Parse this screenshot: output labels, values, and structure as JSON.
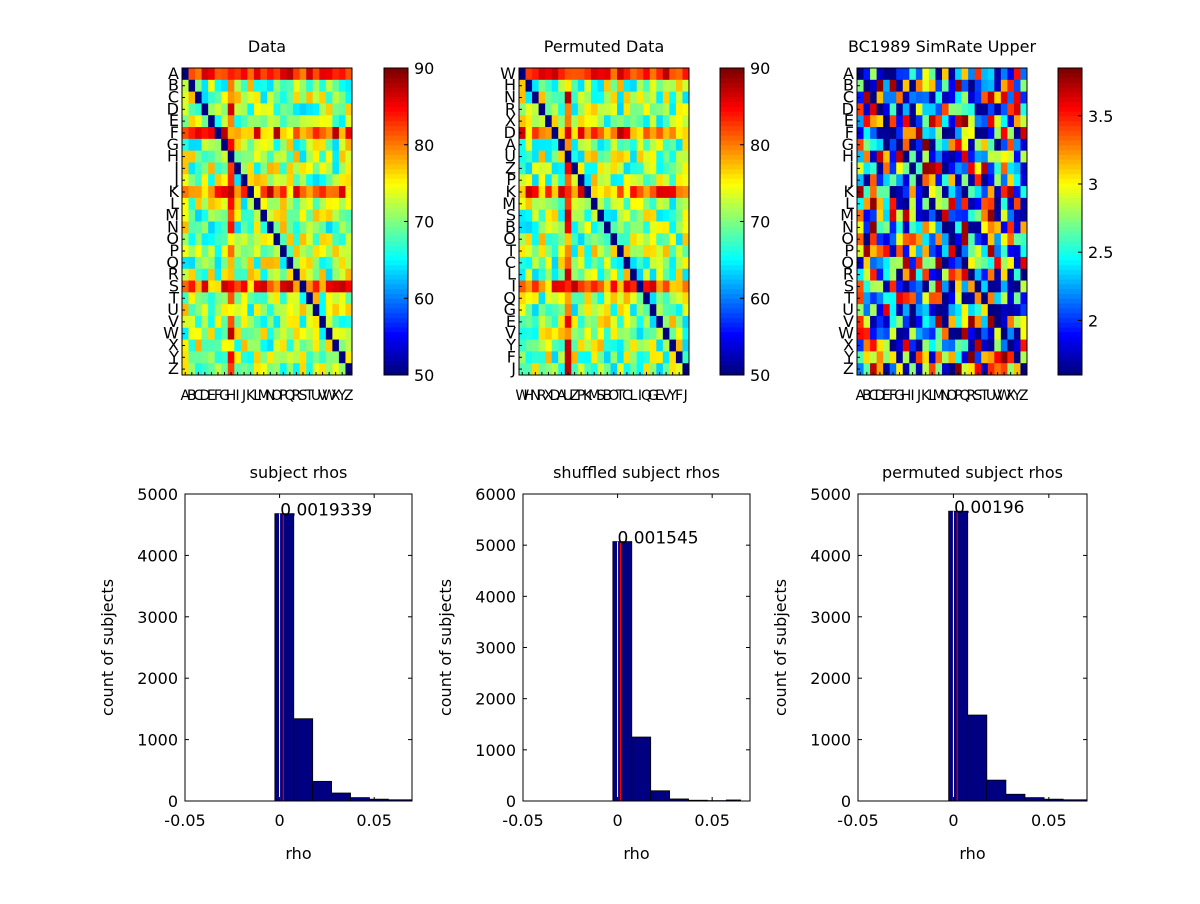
{
  "figure": {
    "background": "#ffffff"
  },
  "chart_data": [
    {
      "type": "heatmap",
      "title": "Data",
      "xlabels": [
        "A",
        "B",
        "C",
        "D",
        "E",
        "F",
        "G",
        "H",
        "I",
        "J",
        "K",
        "L",
        "M",
        "N",
        "O",
        "P",
        "Q",
        "R",
        "S",
        "T",
        "U",
        "V",
        "W",
        "X",
        "Y",
        "Z"
      ],
      "ylabels": [
        "A",
        "B",
        "C",
        "D",
        "E",
        "F",
        "G",
        "H",
        "I",
        "J",
        "K",
        "L",
        "M",
        "N",
        "O",
        "P",
        "Q",
        "R",
        "S",
        "T",
        "U",
        "V",
        "W",
        "X",
        "Y",
        "Z"
      ],
      "colorbar": {
        "min": 50,
        "max": 90,
        "ticks": [
          50,
          60,
          70,
          80,
          90
        ],
        "colormap": "jet"
      },
      "diagonal_value": 50,
      "value_range": [
        55,
        88
      ],
      "pattern": "high-row-col-offset",
      "seed": 11
    },
    {
      "type": "heatmap",
      "title": "Permuted Data",
      "xlabels": [
        "W",
        "H",
        "N",
        "R",
        "X",
        "D",
        "A",
        "U",
        "Z",
        "P",
        "K",
        "M",
        "S",
        "B",
        "O",
        "T",
        "C",
        "L",
        "I",
        "Q",
        "G",
        "E",
        "V",
        "Y",
        "F",
        "J"
      ],
      "ylabels": [
        "W",
        "H",
        "N",
        "R",
        "X",
        "D",
        "A",
        "U",
        "Z",
        "P",
        "K",
        "M",
        "S",
        "B",
        "O",
        "T",
        "C",
        "L",
        "I",
        "Q",
        "G",
        "E",
        "V",
        "Y",
        "F",
        "J"
      ],
      "colorbar": {
        "min": 50,
        "max": 90,
        "ticks": [
          50,
          60,
          70,
          80,
          90
        ],
        "colormap": "jet"
      },
      "diagonal_value": 50,
      "value_range": [
        55,
        88
      ],
      "pattern": "high-row-col-offset",
      "seed": 23
    },
    {
      "type": "heatmap",
      "title": "BC1989 SimRate Upper",
      "xlabels": [
        "A",
        "B",
        "C",
        "D",
        "E",
        "F",
        "G",
        "H",
        "I",
        "J",
        "K",
        "L",
        "M",
        "N",
        "O",
        "P",
        "Q",
        "R",
        "S",
        "T",
        "U",
        "V",
        "W",
        "X",
        "Y",
        "Z"
      ],
      "ylabels": [
        "A",
        "B",
        "C",
        "D",
        "E",
        "F",
        "G",
        "H",
        "I",
        "J",
        "K",
        "L",
        "M",
        "N",
        "O",
        "P",
        "Q",
        "R",
        "S",
        "T",
        "U",
        "V",
        "W",
        "X",
        "Y",
        "Z"
      ],
      "colorbar": {
        "min": 1.6,
        "max": 3.85,
        "ticks": [
          2,
          2.5,
          3,
          3.5
        ],
        "colormap": "jet"
      },
      "diagonal_value": 1.6,
      "value_range": [
        1.6,
        3.85
      ],
      "pattern": "random",
      "seed": 37
    },
    {
      "type": "bar",
      "title": "subject rhos",
      "xlabel": "rho",
      "ylabel": "count of subjects",
      "xlim": [
        -0.05,
        0.07
      ],
      "ylim": [
        0,
        5000
      ],
      "xticks": [
        -0.05,
        0,
        0.05
      ],
      "xtick_labels": [
        "-0.05",
        "0",
        "0.05"
      ],
      "yticks": [
        0,
        1000,
        2000,
        3000,
        4000,
        5000
      ],
      "bin_edges": [
        -0.0025,
        0.0075,
        0.0175,
        0.0275,
        0.0375,
        0.0475,
        0.0575,
        0.07
      ],
      "values": [
        4680,
        1340,
        320,
        130,
        55,
        30,
        20
      ],
      "bar_color": "#000080",
      "mean_line": {
        "x": 0.0019339,
        "color": "#ff0000"
      },
      "zero_line": {
        "x": 0,
        "color": "#ffffff"
      },
      "annotation": {
        "text": "0.0019339",
        "x": 0.0019339,
        "y": 4680
      }
    },
    {
      "type": "bar",
      "title": "shuffled subject rhos",
      "xlabel": "rho",
      "ylabel": "count of subjects",
      "xlim": [
        -0.05,
        0.07
      ],
      "ylim": [
        0,
        6000
      ],
      "xticks": [
        -0.05,
        0,
        0.05
      ],
      "xtick_labels": [
        "-0.05",
        "0",
        "0.05"
      ],
      "yticks": [
        0,
        1000,
        2000,
        3000,
        4000,
        5000,
        6000
      ],
      "bin_edges": [
        -0.0025,
        0.0075,
        0.0175,
        0.0275,
        0.0375,
        0.0475,
        0.0575,
        0.065
      ],
      "values": [
        5070,
        1250,
        200,
        40,
        15,
        8,
        20
      ],
      "bar_color": "#000080",
      "mean_line": {
        "x": 0.001545,
        "color": "#ff0000"
      },
      "zero_line": {
        "x": 0,
        "color": "#ffffff"
      },
      "annotation": {
        "text": "0.001545",
        "x": 0.001545,
        "y": 5070
      }
    },
    {
      "type": "bar",
      "title": "permuted subject rhos",
      "xlabel": "rho",
      "ylabel": "count of subjects",
      "xlim": [
        -0.05,
        0.07
      ],
      "ylim": [
        0,
        5000
      ],
      "xticks": [
        -0.05,
        0,
        0.05
      ],
      "xtick_labels": [
        "-0.05",
        "0",
        "0.05"
      ],
      "yticks": [
        0,
        1000,
        2000,
        3000,
        4000,
        5000
      ],
      "bin_edges": [
        -0.0025,
        0.0075,
        0.0175,
        0.0275,
        0.0375,
        0.0475,
        0.0575,
        0.07
      ],
      "values": [
        4720,
        1400,
        340,
        110,
        55,
        30,
        20
      ],
      "bar_color": "#000080",
      "mean_line": {
        "x": 0.00196,
        "color": "#ff0000"
      },
      "zero_line": {
        "x": 0,
        "color": "#ffffff"
      },
      "annotation": {
        "text": "0.00196",
        "x": 0.00196,
        "y": 4720
      }
    }
  ]
}
